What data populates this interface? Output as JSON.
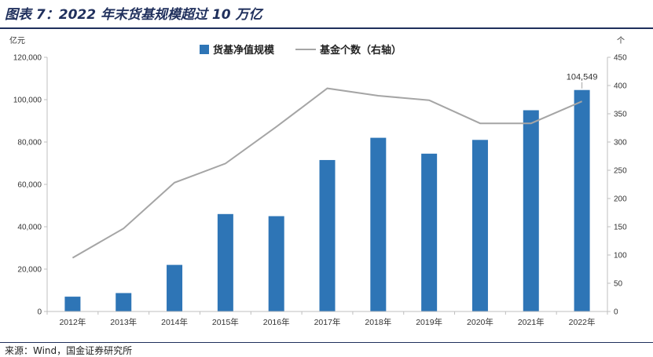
{
  "title": "图表 7：2022 年末货基规模超过 10 万亿",
  "source": "来源：Wind，国金证券研究所",
  "chart_data": {
    "type": "bar",
    "categories": [
      "2012年",
      "2013年",
      "2014年",
      "2015年",
      "2016年",
      "2017年",
      "2018年",
      "2019年",
      "2020年",
      "2021年",
      "2022年"
    ],
    "series": [
      {
        "name": "货基净值规模",
        "type": "bar",
        "axis": "left",
        "color": "#2e75b6",
        "values": [
          7000,
          8700,
          22000,
          46000,
          45000,
          71500,
          82000,
          74500,
          81000,
          95000,
          104549
        ]
      },
      {
        "name": "基金个数（右轴）",
        "type": "line",
        "axis": "right",
        "color": "#a5a5a5",
        "values": [
          95,
          147,
          228,
          262,
          327,
          395,
          382,
          374,
          333,
          333,
          372
        ]
      }
    ],
    "annotation": {
      "category": "2022年",
      "text": "104,549"
    },
    "y_left": {
      "unit": "亿元",
      "ylim": [
        0,
        120000
      ],
      "ticks": [
        0,
        20000,
        40000,
        60000,
        80000,
        100000,
        120000
      ],
      "tick_labels": [
        "0",
        "20,000",
        "40,000",
        "60,000",
        "80,000",
        "100,000",
        "120,000"
      ]
    },
    "y_right": {
      "unit": "个",
      "ylim": [
        0,
        450
      ],
      "ticks": [
        0,
        50,
        100,
        150,
        200,
        250,
        300,
        350,
        400,
        450
      ],
      "tick_labels": [
        "0",
        "50",
        "100",
        "150",
        "200",
        "250",
        "300",
        "350",
        "400",
        "450"
      ]
    },
    "legend": {
      "position": "top-center"
    },
    "grid": false
  }
}
